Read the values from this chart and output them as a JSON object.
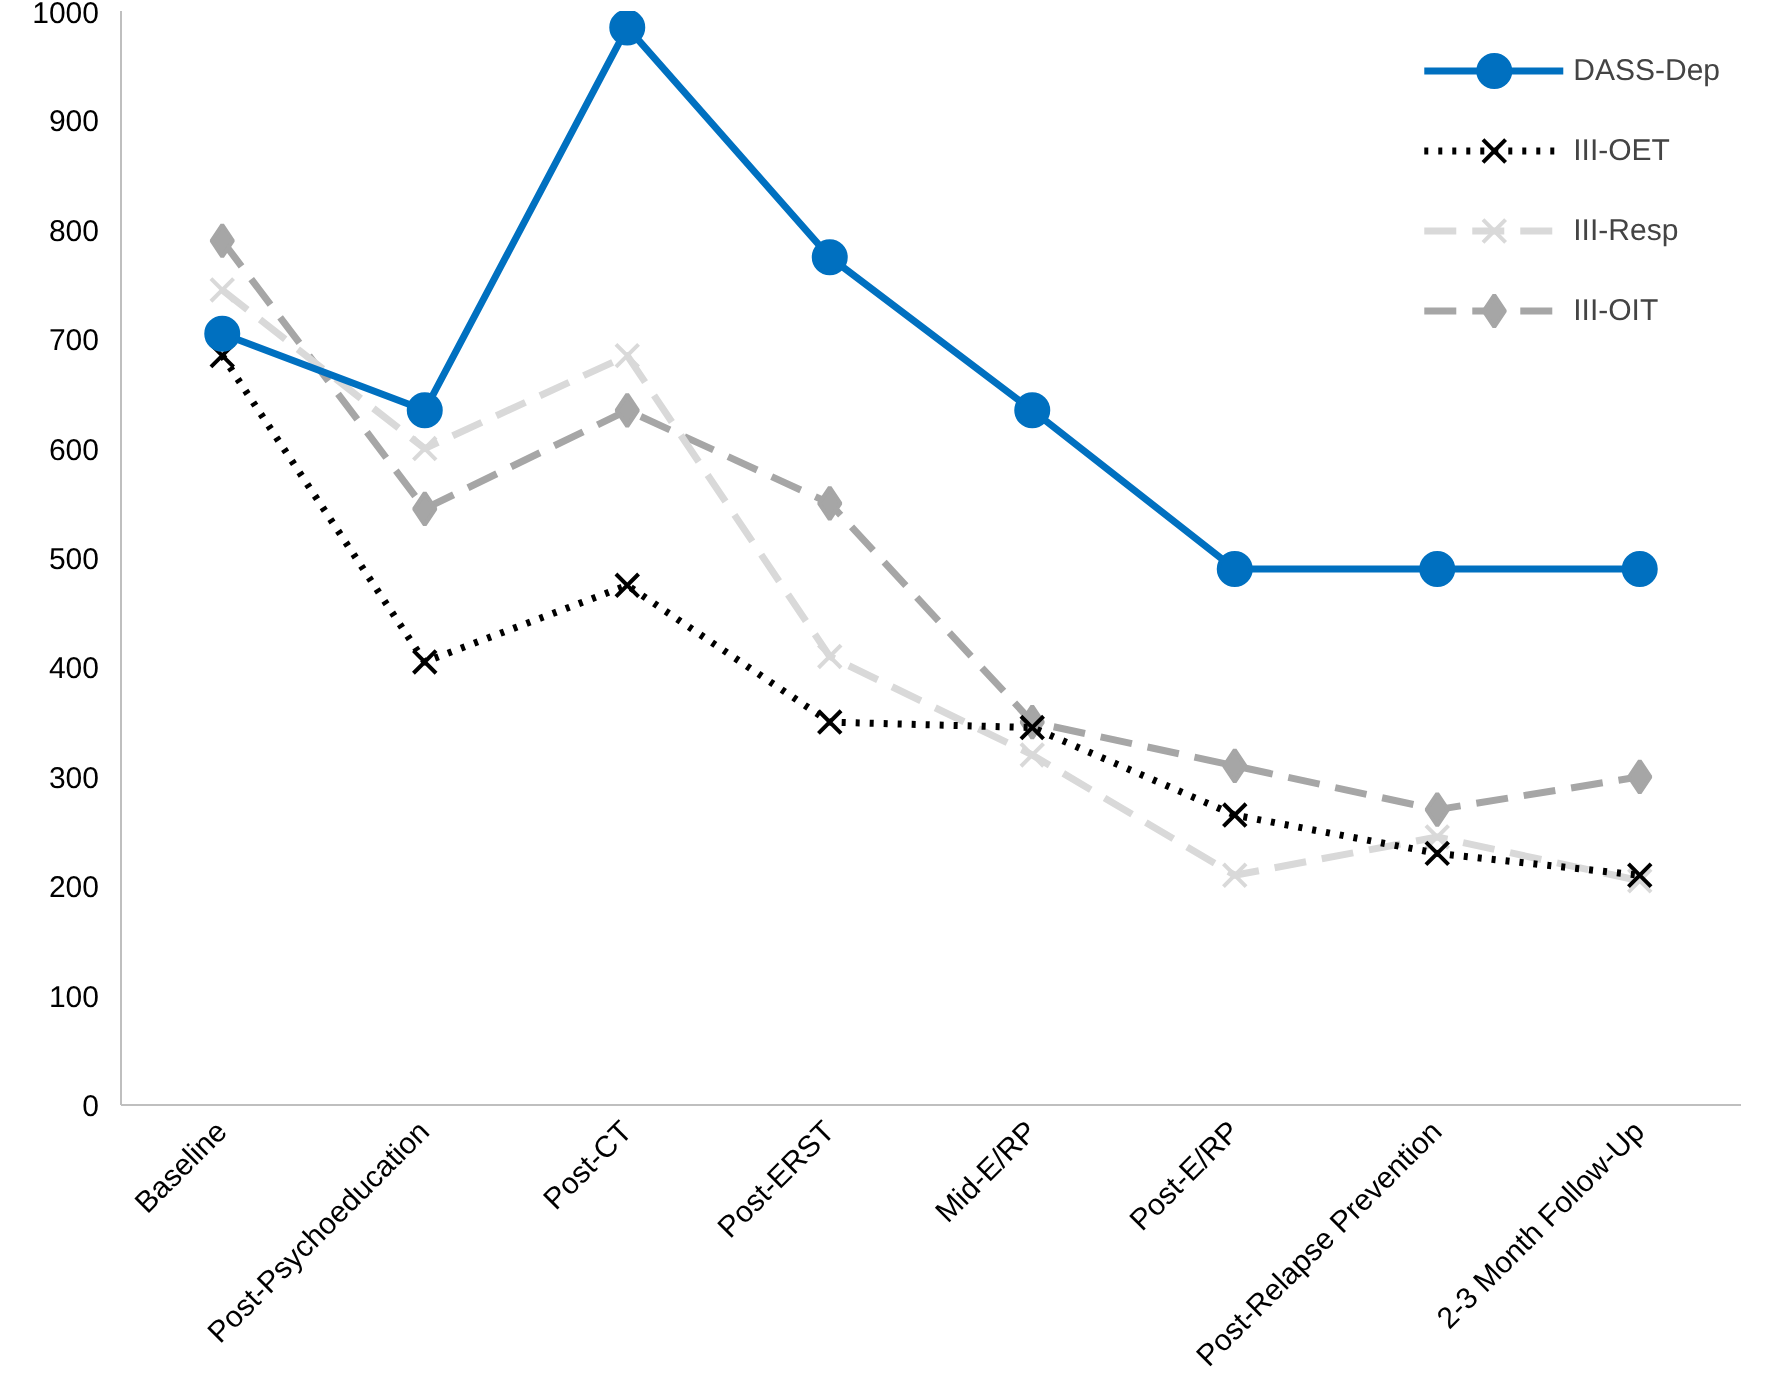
{
  "chart_data": {
    "type": "line",
    "categories": [
      "Baseline",
      "Post-Psychoeducation",
      "Post-CT",
      "Post-ERST",
      "Mid-E/RP",
      "Post-E/RP",
      "Post-Relapse Prevention",
      "2-3 Month Follow-Up"
    ],
    "ylim": [
      0,
      1000
    ],
    "yticks": [
      0,
      100,
      200,
      300,
      400,
      500,
      600,
      700,
      800,
      900,
      1000
    ],
    "grid": false,
    "legend": "top right",
    "series": [
      {
        "name": "DASS-Dep",
        "color": "#0070c0",
        "marker": "circle",
        "line_style": "solid",
        "values": [
          705,
          635,
          985,
          775,
          635,
          490,
          490,
          490
        ]
      },
      {
        "name": "III-OET",
        "color": "#000000",
        "marker": "cross",
        "line_style": "dotted",
        "values": [
          685,
          405,
          475,
          350,
          345,
          265,
          230,
          210
        ]
      },
      {
        "name": "III-Resp",
        "color": "#d9d9d9",
        "marker": "cross",
        "line_style": "dashed",
        "values": [
          745,
          600,
          685,
          410,
          320,
          210,
          245,
          205
        ]
      },
      {
        "name": "III-OIT",
        "color": "#a6a6a6",
        "marker": "diamond",
        "line_style": "dashed",
        "values": [
          790,
          545,
          635,
          550,
          350,
          310,
          270,
          300
        ]
      }
    ]
  }
}
